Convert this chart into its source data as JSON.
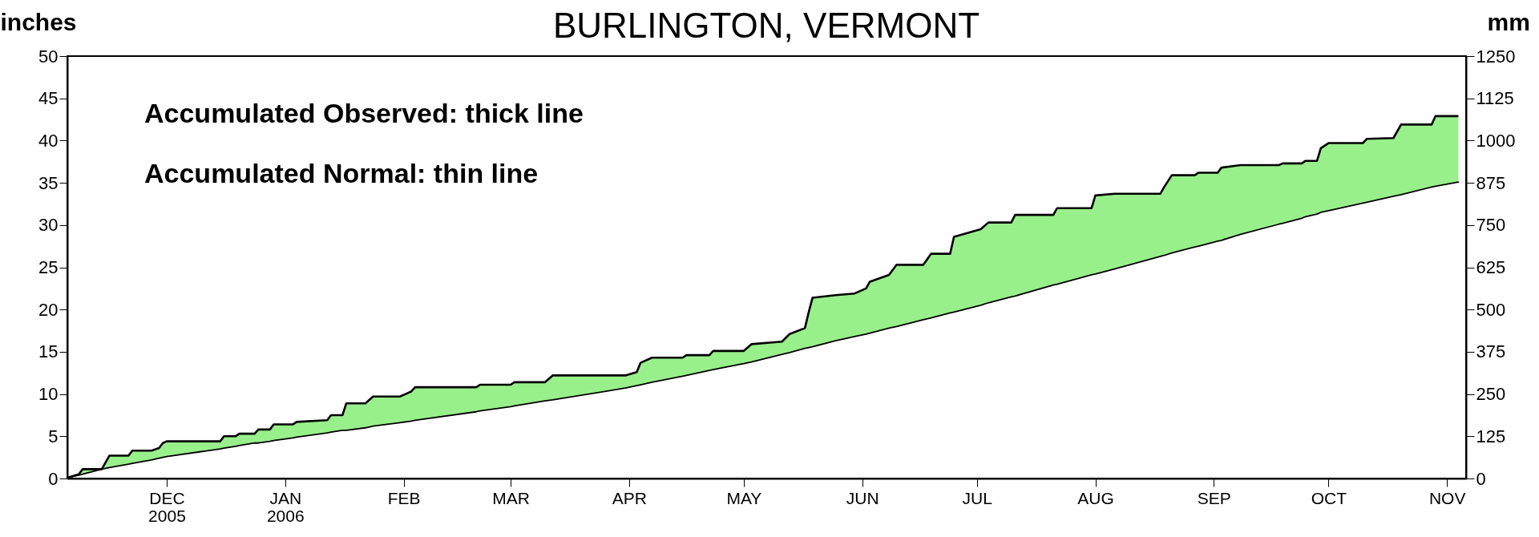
{
  "chart_data": {
    "type": "line",
    "title": "BURLINGTON, VERMONT",
    "ylabel": "inches",
    "y2label": "mm",
    "annotations": [
      "Accumulated Observed: thick line",
      "Accumulated Normal: thin line"
    ],
    "x": [
      "2005-11-05",
      "2005-11-08",
      "2005-11-09",
      "2005-11-14",
      "2005-11-16",
      "2005-11-21",
      "2005-11-22",
      "2005-11-27",
      "2005-11-29",
      "2005-11-30",
      "2005-12-01",
      "2005-12-15",
      "2005-12-16",
      "2005-12-19",
      "2005-12-20",
      "2005-12-24",
      "2005-12-25",
      "2005-12-28",
      "2005-12-29",
      "2006-01-03",
      "2006-01-04",
      "2006-01-12",
      "2006-01-13",
      "2006-01-16",
      "2006-01-17",
      "2006-01-22",
      "2006-01-24",
      "2006-01-31",
      "2006-02-03",
      "2006-02-04",
      "2006-02-20",
      "2006-02-21",
      "2006-03-01",
      "2006-03-02",
      "2006-03-10",
      "2006-03-12",
      "2006-03-31",
      "2006-04-03",
      "2006-04-04",
      "2006-04-07",
      "2006-04-15",
      "2006-04-16",
      "2006-04-22",
      "2006-04-23",
      "2006-05-01",
      "2006-05-03",
      "2006-05-11",
      "2006-05-13",
      "2006-05-17",
      "2006-05-18",
      "2006-05-19",
      "2006-05-25",
      "2006-05-30",
      "2006-06-02",
      "2006-06-03",
      "2006-06-08",
      "2006-06-10",
      "2006-06-17",
      "2006-06-19",
      "2006-06-24",
      "2006-06-25",
      "2006-07-02",
      "2006-07-04",
      "2006-07-10",
      "2006-07-11",
      "2006-07-21",
      "2006-07-22",
      "2006-07-31",
      "2006-08-01",
      "2006-08-06",
      "2006-08-18",
      "2006-08-19",
      "2006-08-21",
      "2006-08-27",
      "2006-08-28",
      "2006-09-02",
      "2006-09-03",
      "2006-09-08",
      "2006-09-18",
      "2006-09-19",
      "2006-09-24",
      "2006-09-25",
      "2006-09-28",
      "2006-09-29",
      "2006-10-01",
      "2006-10-10",
      "2006-10-11",
      "2006-10-18",
      "2006-10-20",
      "2006-10-28",
      "2006-10-29",
      "2006-11-04"
    ],
    "series": [
      {
        "type": "area",
        "color": "#98f08a",
        "values": [
          0.1,
          0.5,
          1.1,
          1.1,
          2.7,
          2.7,
          3.3,
          3.3,
          3.6,
          4.2,
          4.4,
          4.4,
          5.0,
          5.0,
          5.3,
          5.3,
          5.8,
          5.8,
          6.4,
          6.4,
          6.7,
          6.9,
          7.5,
          7.5,
          8.9,
          8.9,
          9.7,
          9.7,
          10.3,
          10.8,
          10.8,
          11.1,
          11.1,
          11.4,
          11.4,
          12.2,
          12.2,
          12.6,
          13.7,
          14.3,
          14.3,
          14.6,
          14.6,
          15.1,
          15.1,
          15.9,
          16.2,
          17.1,
          17.8,
          19.7,
          21.4,
          21.7,
          21.9,
          22.5,
          23.3,
          24.1,
          25.3,
          25.3,
          26.6,
          26.6,
          28.6,
          29.5,
          30.3,
          30.3,
          31.2,
          31.2,
          32.0,
          32.0,
          33.5,
          33.7,
          33.7,
          34.5,
          35.9,
          35.9,
          36.2,
          36.2,
          36.8,
          37.1,
          37.1,
          37.3,
          37.3,
          37.6,
          37.6,
          39.1,
          39.7,
          39.7,
          40.2,
          40.3,
          41.9,
          41.9,
          42.9,
          42.9
        ]
      },
      {
        "color": "#000000",
        "values": [
          0.1,
          0.4,
          0.5,
          1.1,
          1.3,
          1.7,
          1.8,
          2.2,
          2.4,
          2.5,
          2.6,
          3.5,
          3.6,
          3.8,
          3.9,
          4.2,
          4.2,
          4.4,
          4.5,
          4.8,
          4.9,
          5.4,
          5.5,
          5.7,
          5.7,
          6.0,
          6.2,
          6.6,
          6.8,
          6.9,
          7.9,
          8.0,
          8.5,
          8.6,
          9.2,
          9.3,
          10.7,
          11.0,
          11.1,
          11.4,
          12.1,
          12.2,
          12.8,
          12.9,
          13.6,
          13.8,
          14.7,
          14.9,
          15.4,
          15.5,
          15.6,
          16.3,
          16.8,
          17.1,
          17.2,
          17.8,
          18.0,
          18.8,
          19.0,
          19.6,
          19.7,
          20.5,
          20.8,
          21.5,
          21.6,
          22.9,
          23.0,
          24.1,
          24.2,
          24.8,
          26.3,
          26.4,
          26.7,
          27.4,
          27.5,
          28.1,
          28.2,
          28.9,
          30.1,
          30.2,
          30.8,
          31.0,
          31.3,
          31.5,
          31.7,
          32.6,
          32.7,
          33.4,
          33.6,
          34.5,
          34.6,
          35.1
        ]
      }
    ],
    "xlim": [
      "2005-11-05",
      "2006-11-06"
    ],
    "xticks": [
      {
        "value": "2005-12-01",
        "label": "DEC\n2005"
      },
      {
        "value": "2006-01-01",
        "label": "JAN\n2006"
      },
      {
        "value": "2006-02-01",
        "label": "FEB"
      },
      {
        "value": "2006-03-01",
        "label": "MAR"
      },
      {
        "value": "2006-04-01",
        "label": "APR"
      },
      {
        "value": "2006-05-01",
        "label": "MAY"
      },
      {
        "value": "2006-06-01",
        "label": "JUN"
      },
      {
        "value": "2006-07-01",
        "label": "JUL"
      },
      {
        "value": "2006-08-01",
        "label": "AUG"
      },
      {
        "value": "2006-09-01",
        "label": "SEP"
      },
      {
        "value": "2006-10-01",
        "label": "OCT"
      },
      {
        "value": "2006-11-01",
        "label": "NOV"
      }
    ],
    "ylim": [
      0,
      50
    ],
    "yticks": [
      0,
      5,
      10,
      15,
      20,
      25,
      30,
      35,
      40,
      45,
      50
    ],
    "y2lim": [
      0,
      1250
    ],
    "y2ticks": [
      0,
      125,
      250,
      375,
      500,
      625,
      750,
      875,
      1000,
      1125,
      1250
    ]
  }
}
